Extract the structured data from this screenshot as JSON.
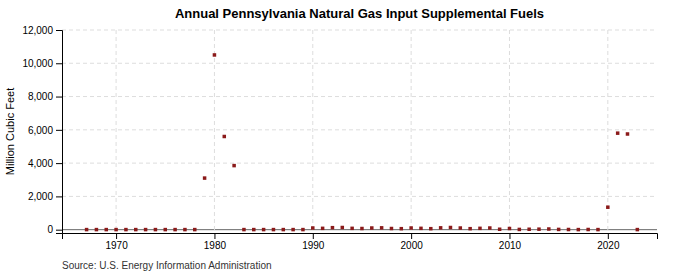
{
  "chart_data": {
    "type": "scatter",
    "title": "Annual Pennsylvania Natural Gas Input Supplemental Fuels",
    "ylabel": "Million Cubic Feet",
    "annotations": [
      "Source: U.S. Energy Information Administration"
    ],
    "color": "#8b1a1a",
    "marker": "square",
    "grid": true,
    "xlim": [
      1964.5,
      2025
    ],
    "xticks": [
      1970,
      1980,
      1990,
      2000,
      2010,
      2020
    ],
    "ylim": [
      -200,
      12000
    ],
    "yticks": [
      0,
      {
        "value": 2000,
        "label": "2,000"
      },
      {
        "value": 4000,
        "label": "4,000"
      },
      {
        "value": 6000,
        "label": "6,000"
      },
      {
        "value": 8000,
        "label": "8,000"
      },
      {
        "value": 10000,
        "label": "10,000"
      },
      {
        "value": 12000,
        "label": "12,000"
      }
    ],
    "x": [
      1967,
      1968,
      1969,
      1970,
      1971,
      1972,
      1973,
      1974,
      1975,
      1976,
      1977,
      1978,
      1979,
      1980,
      1981,
      1982,
      1983,
      1984,
      1985,
      1986,
      1987,
      1988,
      1989,
      1990,
      1991,
      1992,
      1993,
      1994,
      1995,
      1996,
      1997,
      1998,
      1999,
      2000,
      2001,
      2002,
      2003,
      2004,
      2005,
      2006,
      2007,
      2008,
      2009,
      2010,
      2011,
      2012,
      2013,
      2014,
      2015,
      2016,
      2017,
      2018,
      2019,
      2020,
      2021,
      2022,
      2023
    ],
    "values": [
      5,
      5,
      5,
      5,
      5,
      5,
      5,
      5,
      5,
      5,
      5,
      5,
      3100,
      10500,
      5600,
      3850,
      5,
      5,
      5,
      5,
      5,
      5,
      5,
      100,
      80,
      120,
      130,
      80,
      70,
      100,
      110,
      70,
      60,
      100,
      80,
      60,
      110,
      130,
      100,
      60,
      80,
      100,
      25,
      70,
      15,
      25,
      30,
      40,
      15,
      10,
      5,
      10,
      5,
      1350,
      5800,
      5750,
      5
    ]
  }
}
